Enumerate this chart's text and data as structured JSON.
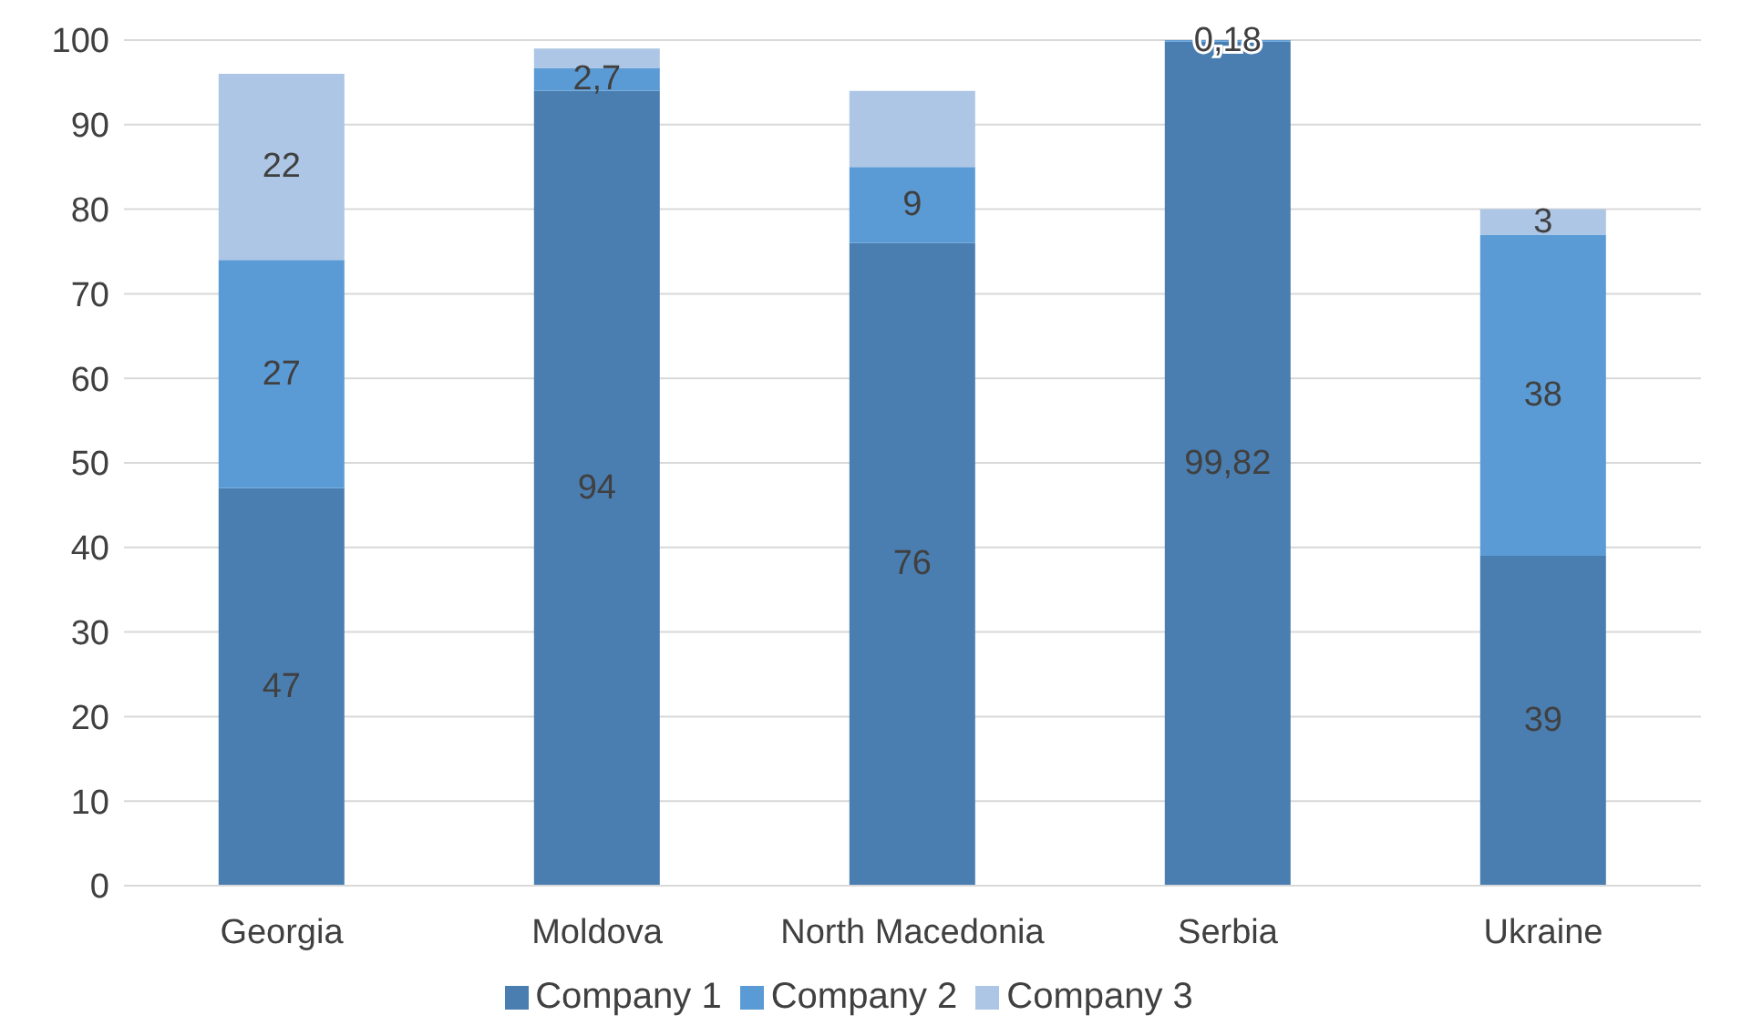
{
  "chart_data": {
    "type": "bar",
    "stacked": true,
    "categories": [
      "Georgia",
      "Moldova",
      "North Macedonia",
      "Serbia",
      "Ukraine"
    ],
    "series": [
      {
        "name": "Company 1",
        "color": "#4a7eb0",
        "values": [
          47,
          94,
          76,
          99.82,
          39
        ],
        "value_labels": [
          "47",
          "94",
          "76",
          "99,82",
          "39"
        ]
      },
      {
        "name": "Company 2",
        "color": "#5b9bd5",
        "values": [
          27,
          2.7,
          9,
          0.18,
          38
        ],
        "value_labels": [
          "27",
          "2,7",
          "9",
          "0,18",
          "38"
        ]
      },
      {
        "name": "Company 3",
        "color": "#adc6e5",
        "values": [
          22,
          2.3,
          9,
          null,
          3
        ],
        "value_labels": [
          "22",
          null,
          null,
          null,
          "3"
        ]
      }
    ],
    "ylim": [
      0,
      100
    ],
    "yticks": [
      0,
      10,
      20,
      30,
      40,
      50,
      60,
      70,
      80,
      90,
      100
    ],
    "grid": "y",
    "legend": "bottom"
  }
}
